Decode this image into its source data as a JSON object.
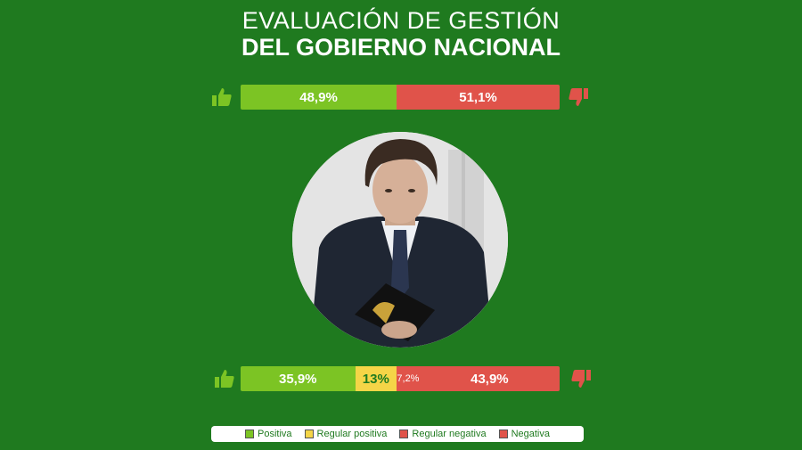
{
  "title_line1": "EVALUACIÓN DE GESTIÓN",
  "title_line2": "DEL GOBIERNO NACIONAL",
  "colors": {
    "background": "#1f7a1f",
    "positive": "#7cc424",
    "regular_positive": "#f5d547",
    "regular_negative": "#e0534a",
    "negative": "#e0534a"
  },
  "chart_data": [
    {
      "type": "bar",
      "orientation": "horizontal-stacked",
      "series": [
        {
          "name": "Positiva",
          "value": 48.9,
          "label": "48,9%"
        },
        {
          "name": "Negativa",
          "value": 51.1,
          "label": "51,1%"
        }
      ],
      "xlim": [
        0,
        100
      ]
    },
    {
      "type": "bar",
      "orientation": "horizontal-stacked",
      "series": [
        {
          "name": "Positiva",
          "value": 35.9,
          "label": "35,9%"
        },
        {
          "name": "Regular positiva",
          "value": 13,
          "label": "13%"
        },
        {
          "name": "Regular negativa",
          "value": 7.2,
          "label": "7,2%"
        },
        {
          "name": "Negativa",
          "value": 43.9,
          "label": "43,9%"
        }
      ],
      "xlim": [
        0,
        100
      ]
    }
  ],
  "legend": [
    {
      "label": "Positiva",
      "color": "#7cc424"
    },
    {
      "label": "Regular positiva",
      "color": "#f5d547"
    },
    {
      "label": "Regular negativa",
      "color": "#e0534a"
    },
    {
      "label": "Negativa",
      "color": "#e0534a"
    }
  ],
  "icons": {
    "left": "thumbs-up-icon",
    "right": "thumbs-down-icon"
  }
}
